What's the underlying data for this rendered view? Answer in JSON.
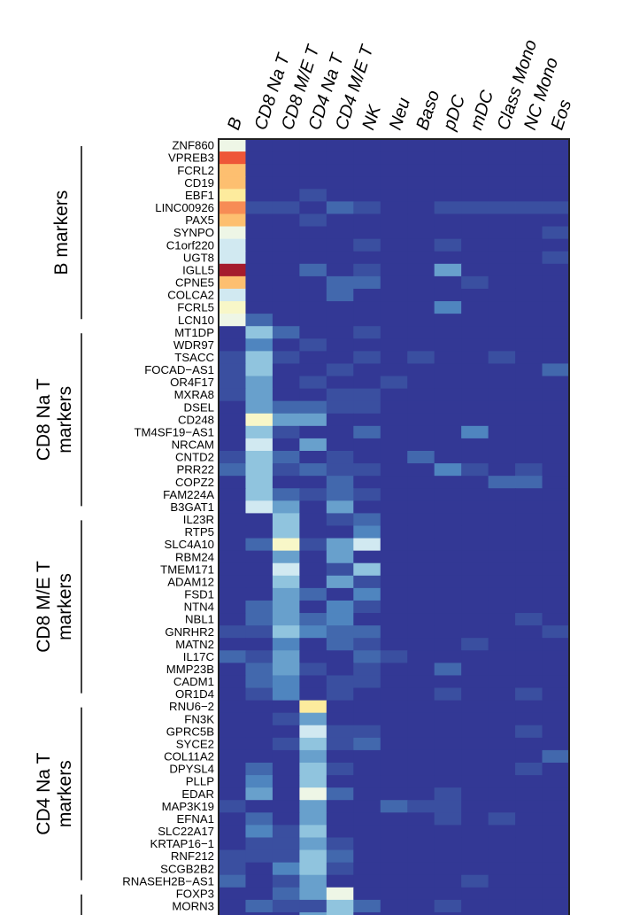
{
  "chart_data": {
    "type": "heatmap",
    "title": "",
    "color_scale": "blue (low) to yellow to red (high), levels 0-13",
    "palette": [
      "#333895",
      "#3a4fa0",
      "#4268ad",
      "#4f85bf",
      "#68a0cc",
      "#90c4de",
      "#d1e9f1",
      "#eef6e6",
      "#f8f7c8",
      "#fdeb9d",
      "#fdbf70",
      "#f78c55",
      "#ee5638",
      "#a51c2d"
    ],
    "columns": [
      "B",
      "CD8 Na T",
      "CD8 M/E T",
      "CD4 Na T",
      "CD4 M/E T",
      "NK",
      "Neu",
      "Baso",
      "pDC",
      "mDC",
      "Class Mono",
      "NC Mono",
      "Eos"
    ],
    "groups": [
      {
        "lines": [
          "B markers"
        ],
        "start": 0,
        "end": 14
      },
      {
        "lines": [
          "CD8 Na T",
          "markers"
        ],
        "start": 15,
        "end": 29
      },
      {
        "lines": [
          "CD8 M/E T",
          "markers"
        ],
        "start": 30,
        "end": 44
      },
      {
        "lines": [
          "CD4 Na T",
          "markers"
        ],
        "start": 45,
        "end": 59
      },
      {
        "lines": [],
        "start": 60,
        "end": 62
      }
    ],
    "rows": [
      {
        "gene": "ZNF860",
        "values": [
          7,
          0,
          0,
          0,
          0,
          0,
          0,
          0,
          0,
          0,
          0,
          0,
          0
        ]
      },
      {
        "gene": "VPREB3",
        "values": [
          12,
          0,
          0,
          0,
          0,
          0,
          0,
          0,
          0,
          0,
          0,
          0,
          0
        ]
      },
      {
        "gene": "FCRL2",
        "values": [
          10,
          0,
          0,
          0,
          0,
          0,
          0,
          0,
          0,
          0,
          0,
          0,
          0
        ]
      },
      {
        "gene": "CD19",
        "values": [
          10,
          0,
          0,
          0,
          0,
          0,
          0,
          0,
          0,
          0,
          0,
          0,
          0
        ]
      },
      {
        "gene": "EBF1",
        "values": [
          9,
          0,
          0,
          1,
          0,
          0,
          0,
          0,
          0,
          0,
          0,
          0,
          0
        ]
      },
      {
        "gene": "LINC00926",
        "values": [
          11,
          1,
          1,
          0,
          2,
          1,
          0,
          0,
          1,
          1,
          1,
          1,
          1
        ]
      },
      {
        "gene": "PAX5",
        "values": [
          10,
          0,
          0,
          1,
          0,
          0,
          0,
          0,
          0,
          0,
          0,
          0,
          0
        ]
      },
      {
        "gene": "SYNPO",
        "values": [
          7,
          0,
          0,
          0,
          0,
          0,
          0,
          0,
          0,
          0,
          0,
          0,
          1
        ]
      },
      {
        "gene": "C1orf220",
        "values": [
          6,
          0,
          0,
          0,
          0,
          1,
          0,
          0,
          1,
          0,
          0,
          0,
          0
        ]
      },
      {
        "gene": "UGT8",
        "values": [
          6,
          0,
          0,
          0,
          0,
          0,
          0,
          0,
          0,
          0,
          0,
          0,
          1
        ]
      },
      {
        "gene": "IGLL5",
        "values": [
          13,
          0,
          0,
          2,
          0,
          1,
          0,
          0,
          4,
          0,
          0,
          0,
          0
        ]
      },
      {
        "gene": "CPNE5",
        "values": [
          10,
          0,
          0,
          0,
          2,
          2,
          0,
          0,
          0,
          1,
          0,
          0,
          0
        ]
      },
      {
        "gene": "COLCA2",
        "values": [
          6,
          0,
          0,
          0,
          2,
          0,
          0,
          0,
          0,
          0,
          0,
          0,
          0
        ]
      },
      {
        "gene": "FCRL5",
        "values": [
          8,
          0,
          0,
          0,
          0,
          0,
          0,
          0,
          3,
          0,
          0,
          0,
          0
        ]
      },
      {
        "gene": "LCN10",
        "values": [
          7,
          2,
          0,
          0,
          0,
          0,
          0,
          0,
          0,
          0,
          0,
          0,
          0
        ]
      },
      {
        "gene": "MT1DP",
        "values": [
          0,
          5,
          2,
          0,
          0,
          1,
          0,
          0,
          0,
          0,
          0,
          0,
          0
        ]
      },
      {
        "gene": "WDR97",
        "values": [
          0,
          3,
          0,
          1,
          0,
          0,
          0,
          0,
          0,
          0,
          0,
          0,
          0
        ]
      },
      {
        "gene": "TSACC",
        "values": [
          1,
          5,
          1,
          0,
          0,
          1,
          0,
          1,
          0,
          0,
          1,
          0,
          0
        ]
      },
      {
        "gene": "FOCAD−AS1",
        "values": [
          1,
          5,
          0,
          0,
          1,
          0,
          0,
          0,
          0,
          0,
          0,
          0,
          2
        ]
      },
      {
        "gene": "OR4F17",
        "values": [
          1,
          4,
          0,
          1,
          0,
          0,
          1,
          0,
          0,
          0,
          0,
          0,
          0
        ]
      },
      {
        "gene": "MXRA8",
        "values": [
          1,
          4,
          0,
          0,
          1,
          1,
          0,
          0,
          0,
          0,
          0,
          0,
          0
        ]
      },
      {
        "gene": "DSEL",
        "values": [
          0,
          4,
          2,
          2,
          1,
          1,
          0,
          0,
          0,
          0,
          0,
          0,
          0
        ]
      },
      {
        "gene": "CD248",
        "values": [
          0,
          8,
          4,
          4,
          0,
          0,
          0,
          0,
          0,
          0,
          0,
          0,
          0
        ]
      },
      {
        "gene": "TM4SF19−AS1",
        "values": [
          0,
          5,
          1,
          0,
          0,
          2,
          0,
          0,
          0,
          3,
          0,
          0,
          0
        ]
      },
      {
        "gene": "NRCAM",
        "values": [
          0,
          6,
          0,
          4,
          0,
          0,
          0,
          0,
          0,
          0,
          0,
          0,
          0
        ]
      },
      {
        "gene": "CNTD2",
        "values": [
          1,
          5,
          2,
          0,
          1,
          0,
          0,
          2,
          0,
          0,
          0,
          0,
          0
        ]
      },
      {
        "gene": "PRR22",
        "values": [
          2,
          5,
          1,
          2,
          1,
          1,
          0,
          0,
          3,
          1,
          0,
          1,
          0
        ]
      },
      {
        "gene": "COPZ2",
        "values": [
          0,
          5,
          0,
          0,
          2,
          0,
          0,
          0,
          0,
          0,
          2,
          2,
          0
        ]
      },
      {
        "gene": "FAM224A",
        "values": [
          0,
          5,
          2,
          1,
          2,
          1,
          0,
          0,
          0,
          0,
          0,
          0,
          0
        ]
      },
      {
        "gene": "B3GAT1",
        "values": [
          0,
          6,
          4,
          0,
          4,
          0,
          0,
          0,
          0,
          0,
          0,
          0,
          0
        ]
      },
      {
        "gene": "IL23R",
        "values": [
          0,
          0,
          5,
          0,
          1,
          2,
          0,
          0,
          0,
          0,
          0,
          0,
          0
        ]
      },
      {
        "gene": "RTP5",
        "values": [
          0,
          0,
          5,
          0,
          0,
          3,
          0,
          0,
          0,
          0,
          0,
          0,
          0
        ]
      },
      {
        "gene": "SLC4A10",
        "values": [
          0,
          2,
          8,
          1,
          4,
          6,
          0,
          0,
          0,
          0,
          0,
          0,
          0
        ]
      },
      {
        "gene": "RBM24",
        "values": [
          0,
          0,
          4,
          0,
          4,
          0,
          0,
          0,
          0,
          0,
          0,
          0,
          0
        ]
      },
      {
        "gene": "TMEM171",
        "values": [
          0,
          0,
          6,
          0,
          1,
          5,
          0,
          0,
          0,
          0,
          0,
          0,
          0
        ]
      },
      {
        "gene": "ADAM12",
        "values": [
          0,
          0,
          5,
          0,
          4,
          1,
          0,
          0,
          0,
          0,
          0,
          0,
          0
        ]
      },
      {
        "gene": "FSD1",
        "values": [
          0,
          0,
          4,
          2,
          0,
          3,
          0,
          0,
          0,
          0,
          0,
          0,
          0
        ]
      },
      {
        "gene": "NTN4",
        "values": [
          0,
          2,
          4,
          0,
          3,
          1,
          0,
          0,
          0,
          0,
          0,
          0,
          0
        ]
      },
      {
        "gene": "NBL1",
        "values": [
          0,
          2,
          4,
          2,
          3,
          0,
          0,
          0,
          0,
          0,
          0,
          1,
          0
        ]
      },
      {
        "gene": "GNRHR2",
        "values": [
          1,
          1,
          5,
          3,
          2,
          2,
          0,
          0,
          0,
          0,
          0,
          0,
          1
        ]
      },
      {
        "gene": "MATN2",
        "values": [
          0,
          0,
          3,
          0,
          2,
          1,
          0,
          0,
          0,
          1,
          0,
          0,
          0
        ]
      },
      {
        "gene": "IL17C",
        "values": [
          2,
          1,
          4,
          0,
          0,
          2,
          1,
          0,
          0,
          0,
          0,
          0,
          0
        ]
      },
      {
        "gene": "MMP23B",
        "values": [
          0,
          2,
          4,
          1,
          0,
          1,
          0,
          0,
          2,
          0,
          0,
          0,
          0
        ]
      },
      {
        "gene": "CADM1",
        "values": [
          0,
          2,
          3,
          0,
          1,
          1,
          0,
          0,
          0,
          0,
          0,
          0,
          0
        ]
      },
      {
        "gene": "OR1D4",
        "values": [
          0,
          1,
          3,
          0,
          1,
          0,
          0,
          0,
          1,
          0,
          0,
          1,
          0
        ]
      },
      {
        "gene": "RNU6−2",
        "values": [
          0,
          0,
          0,
          9,
          0,
          0,
          0,
          0,
          0,
          0,
          0,
          0,
          0
        ]
      },
      {
        "gene": "FN3K",
        "values": [
          0,
          0,
          1,
          4,
          0,
          0,
          0,
          0,
          0,
          0,
          0,
          0,
          0
        ]
      },
      {
        "gene": "GPRC5B",
        "values": [
          0,
          0,
          0,
          6,
          1,
          1,
          0,
          0,
          0,
          0,
          0,
          1,
          0
        ]
      },
      {
        "gene": "SYCE2",
        "values": [
          0,
          0,
          1,
          5,
          1,
          2,
          0,
          0,
          0,
          0,
          0,
          0,
          0
        ]
      },
      {
        "gene": "COL11A2",
        "values": [
          0,
          0,
          0,
          4,
          0,
          0,
          0,
          0,
          0,
          0,
          0,
          0,
          2
        ]
      },
      {
        "gene": "DPYSL4",
        "values": [
          0,
          2,
          0,
          5,
          1,
          0,
          0,
          0,
          0,
          0,
          0,
          1,
          0
        ]
      },
      {
        "gene": "PLLP",
        "values": [
          0,
          3,
          0,
          5,
          0,
          0,
          0,
          0,
          0,
          0,
          0,
          0,
          0
        ]
      },
      {
        "gene": "EDAR",
        "values": [
          0,
          4,
          0,
          7,
          2,
          0,
          0,
          0,
          1,
          0,
          0,
          0,
          0
        ]
      },
      {
        "gene": "MAP3K19",
        "values": [
          1,
          0,
          0,
          4,
          0,
          0,
          2,
          1,
          1,
          0,
          0,
          0,
          0
        ]
      },
      {
        "gene": "EFNA1",
        "values": [
          0,
          2,
          0,
          4,
          0,
          0,
          0,
          0,
          1,
          0,
          1,
          0,
          0
        ]
      },
      {
        "gene": "SLC22A17",
        "values": [
          0,
          3,
          1,
          5,
          0,
          0,
          0,
          0,
          0,
          0,
          0,
          0,
          0
        ]
      },
      {
        "gene": "KRTAP16−1",
        "values": [
          0,
          1,
          1,
          4,
          1,
          0,
          0,
          0,
          0,
          0,
          0,
          0,
          0
        ]
      },
      {
        "gene": "RNF212",
        "values": [
          1,
          1,
          1,
          5,
          2,
          0,
          0,
          0,
          0,
          0,
          0,
          0,
          0
        ]
      },
      {
        "gene": "SCGB2B2",
        "values": [
          1,
          0,
          3,
          5,
          1,
          0,
          0,
          0,
          0,
          0,
          0,
          0,
          0
        ]
      },
      {
        "gene": "RNASEH2B−AS1",
        "values": [
          2,
          0,
          1,
          4,
          0,
          0,
          0,
          0,
          0,
          1,
          0,
          0,
          0
        ]
      },
      {
        "gene": "FOXP3",
        "values": [
          0,
          0,
          2,
          4,
          7,
          0,
          0,
          0,
          0,
          0,
          0,
          0,
          0
        ]
      },
      {
        "gene": "MORN3",
        "values": [
          0,
          2,
          1,
          1,
          5,
          2,
          0,
          0,
          1,
          0,
          0,
          0,
          0
        ]
      },
      {
        "gene": "",
        "values": [
          0,
          0,
          0,
          4,
          5,
          0,
          0,
          0,
          0,
          0,
          0,
          0,
          0
        ]
      }
    ]
  }
}
